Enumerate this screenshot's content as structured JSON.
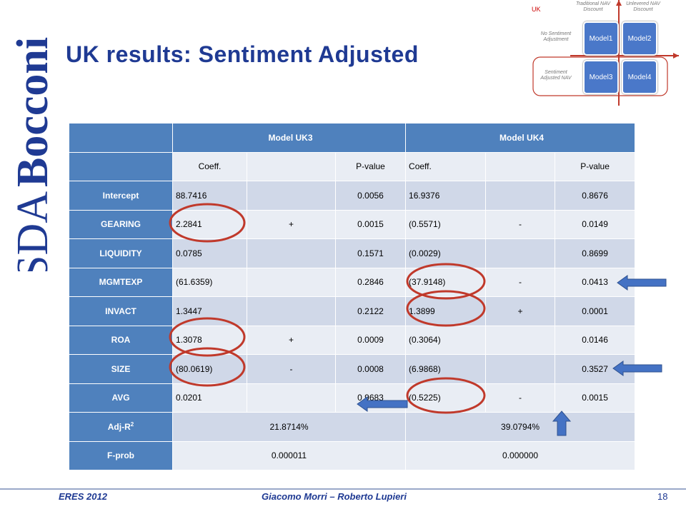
{
  "logo": {
    "text_light": "SDA",
    "text_bold": "Bocconi"
  },
  "title": "UK results: Sentiment Adjusted",
  "model_graphic": {
    "region": "UK",
    "col1": "Traditional NAV Discount",
    "col2": "Unlevered NAV Discount",
    "row1": "No Sentiment Adjustment",
    "row2": "Sentiment Adjusted NAV",
    "boxes": [
      "Model1",
      "Model2",
      "Model3",
      "Model4"
    ]
  },
  "table": {
    "model_headers": [
      "Model UK3",
      "Model UK4"
    ],
    "sub_headers": [
      "Coeff.",
      "",
      "P-value",
      "Coeff.",
      "",
      "P-value"
    ],
    "rows": [
      {
        "label": "Intercept",
        "c3": "88.7416",
        "s3": "",
        "p3": "0.0056",
        "c4": "16.9376",
        "s4": "",
        "p4": "0.8676"
      },
      {
        "label": "GEARING",
        "c3": "2.2841",
        "s3": "+",
        "p3": "0.0015",
        "c4": "(0.5571)",
        "s4": "-",
        "p4": "0.0149"
      },
      {
        "label": "LIQUIDITY",
        "c3": "0.0785",
        "s3": "",
        "p3": "0.1571",
        "c4": "(0.0029)",
        "s4": "",
        "p4": "0.8699"
      },
      {
        "label": "MGMTEXP",
        "c3": "(61.6359)",
        "s3": "",
        "p3": "0.2846",
        "c4": "(37.9148)",
        "s4": "-",
        "p4": "0.0413"
      },
      {
        "label": "INVACT",
        "c3": "1.3447",
        "s3": "",
        "p3": "0.2122",
        "c4": "1.3899",
        "s4": "+",
        "p4": "0.0001"
      },
      {
        "label": "ROA",
        "c3": "1.3078",
        "s3": "+",
        "p3": "0.0009",
        "c4": "(0.3064)",
        "s4": "",
        "p4": "0.0146"
      },
      {
        "label": "SIZE",
        "c3": "(80.0619)",
        "s3": "-",
        "p3": "0.0008",
        "c4": "(6.9868)",
        "s4": "",
        "p4": "0.3527"
      },
      {
        "label": "AVG",
        "c3": "0.0201",
        "s3": "",
        "p3": "0.9683",
        "c4": "(0.5225)",
        "s4": "-",
        "p4": "0.0015"
      }
    ],
    "adj_r2": {
      "label": "Adj-R",
      "sup": "2",
      "m3": "21.8714%",
      "m4": "39.0794%"
    },
    "fprob": {
      "label": "F-prob",
      "m3": "0.000011",
      "m4": "0.000000"
    }
  },
  "footer": {
    "left": "ERES 2012",
    "center": "Giacomo Morri – Roberto Lupieri",
    "page": "18"
  },
  "colors": {
    "header_blue": "#4f81bd",
    "title_blue": "#1f3a93",
    "circle_red": "#c0392b",
    "arrow_blue": "#4472c4"
  }
}
